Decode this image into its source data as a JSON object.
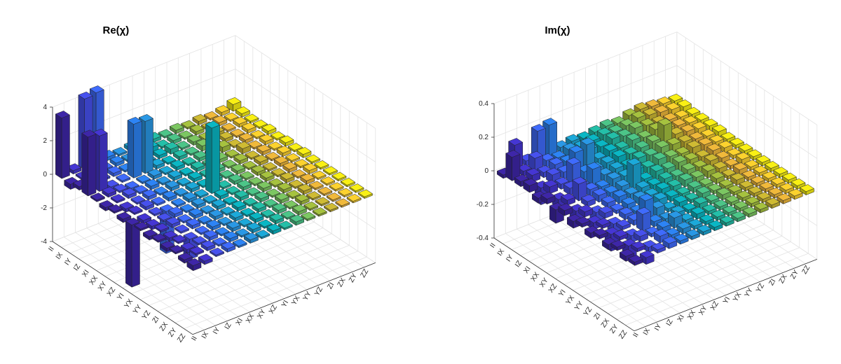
{
  "chart_data": [
    {
      "type": "bar3d",
      "title": "Re(χ)",
      "rows": [
        "II",
        "IX",
        "IY",
        "IZ",
        "XI",
        "XX",
        "XY",
        "XZ",
        "YI",
        "YX",
        "YY",
        "YZ",
        "ZI",
        "ZX",
        "ZY",
        "ZZ"
      ],
      "columns": [
        "II",
        "IX",
        "IY",
        "IZ",
        "XI",
        "XX",
        "XY",
        "XZ",
        "YI",
        "YX",
        "YY",
        "YZ",
        "ZI",
        "ZX",
        "ZY",
        "ZZ"
      ],
      "zlim": [
        -4,
        4
      ],
      "zticks": [
        -4,
        -2,
        0,
        2,
        4
      ],
      "grid": true,
      "colors": [
        "#3e26a8",
        "#4536d3",
        "#4751ee",
        "#3f6bfc",
        "#2d84f5",
        "#2a98e5",
        "#1ca9d9",
        "#0ab7c4",
        "#24bfa8",
        "#4cc588",
        "#7cc762",
        "#a6c23f",
        "#cfbb33",
        "#f0b93b",
        "#fcd22e",
        "#f9f014"
      ],
      "values": [
        [
          3.6,
          0.2,
          4.2,
          4.3,
          0.2,
          0.1,
          0.2,
          0.1,
          0.2,
          0.1,
          0.2,
          0.1,
          0.2,
          0.1,
          0.2,
          0.4
        ],
        [
          -0.3,
          0.1,
          0.2,
          0.1,
          0.2,
          0.1,
          0.2,
          0.3,
          0.1,
          0.2,
          0.1,
          0.2,
          0.1,
          0.2,
          0.1,
          0.2
        ],
        [
          0.2,
          -0.2,
          0.1,
          0.2,
          0.1,
          0.2,
          0.1,
          0.2,
          0.3,
          0.1,
          0.2,
          0.1,
          0.2,
          0.1,
          0.2,
          0.1
        ],
        [
          3.5,
          3.3,
          -0.2,
          0.1,
          3.2,
          3.1,
          0.2,
          0.1,
          0.2,
          0.1,
          0.3,
          0.1,
          0.2,
          0.1,
          0.2,
          0.1
        ],
        [
          0.1,
          0.2,
          0.1,
          -0.2,
          0.1,
          0.2,
          0.1,
          0.2,
          0.1,
          0.2,
          0.1,
          0.3,
          0.1,
          0.2,
          0.1,
          0.2
        ],
        [
          -0.2,
          0.1,
          0.2,
          0.1,
          0.2,
          0.1,
          0.2,
          0.1,
          0.2,
          0.1,
          0.2,
          0.1,
          0.3,
          0.1,
          0.2,
          0.1
        ],
        [
          0.1,
          -0.2,
          0.1,
          0.2,
          0.1,
          0.2,
          0.1,
          0.2,
          0.1,
          0.2,
          0.1,
          0.2,
          0.1,
          0.2,
          0.1,
          0.2
        ],
        [
          -0.2,
          0.1,
          0.2,
          0.1,
          0.2,
          0.1,
          0.2,
          0.1,
          0.2,
          0.1,
          0.2,
          0.1,
          0.2,
          0.1,
          0.2,
          0.1
        ],
        [
          -3.7,
          -0.2,
          0.1,
          -2.5,
          0.1,
          0.2,
          0.1,
          3.9,
          0.1,
          0.2,
          0.1,
          0.2,
          0.1,
          0.2,
          0.1,
          0.2
        ],
        [
          0.1,
          -0.2,
          0.1,
          0.2,
          0.1,
          0.2,
          0.1,
          0.2,
          0.1,
          0.2,
          0.1,
          0.2,
          0.1,
          0.2,
          0.1,
          0.1
        ],
        [
          -0.2,
          0.1,
          0.2,
          0.1,
          0.2,
          0.1,
          0.2,
          0.1,
          0.2,
          0.1,
          0.2,
          0.1,
          0.2,
          0.1,
          0.2,
          0.1
        ],
        [
          0.1,
          -0.2,
          0.1,
          0.2,
          0.1,
          0.2,
          0.1,
          0.2,
          0.1,
          0.2,
          0.1,
          0.2,
          0.1,
          0.2,
          0.1,
          0.1
        ],
        [
          -0.2,
          0.1,
          -1.2,
          0.1,
          0.2,
          0.1,
          0.2,
          0.1,
          0.2,
          0.1,
          0.2,
          0.1,
          0.2,
          0.1,
          0.1,
          0.1
        ],
        [
          0.1,
          -0.2,
          0.1,
          0.2,
          0.1,
          0.2,
          0.1,
          0.2,
          0.1,
          0.2,
          0.1,
          0.2,
          0.1,
          0.1,
          0.1,
          0.1
        ],
        [
          -0.2,
          0.1,
          0.2,
          0.1,
          0.2,
          0.1,
          0.2,
          0.1,
          0.2,
          0.1,
          0.2,
          0.1,
          0.1,
          0.1,
          0.1,
          0.1
        ],
        [
          -0.3,
          -0.2,
          0.1,
          0.2,
          0.1,
          0.2,
          0.1,
          0.2,
          0.1,
          0.2,
          0.1,
          0.1,
          0.1,
          0.1,
          0.1,
          0.1
        ]
      ]
    },
    {
      "type": "bar3d",
      "title": "Im(χ)",
      "rows": [
        "II",
        "IX",
        "IY",
        "IZ",
        "XI",
        "XX",
        "XY",
        "XZ",
        "YI",
        "YX",
        "YY",
        "YZ",
        "ZI",
        "ZX",
        "ZY",
        "ZZ"
      ],
      "columns": [
        "II",
        "IX",
        "IY",
        "IZ",
        "XI",
        "XX",
        "XY",
        "XZ",
        "YI",
        "YX",
        "YY",
        "YZ",
        "ZI",
        "ZX",
        "ZY",
        "ZZ"
      ],
      "zlim": [
        -0.4,
        0.4
      ],
      "zticks": [
        -0.4,
        -0.2,
        0,
        0.2,
        0.4
      ],
      "grid": true,
      "colors": [
        "#3e26a8",
        "#4536d3",
        "#4751ee",
        "#3f6bfc",
        "#2d84f5",
        "#2a98e5",
        "#1ca9d9",
        "#0ab7c4",
        "#24bfa8",
        "#4cc588",
        "#7cc762",
        "#a6c23f",
        "#cfbb33",
        "#f0b93b",
        "#fcd22e",
        "#f9f014"
      ],
      "values": [
        [
          -0.02,
          0.15,
          0.03,
          0.18,
          0.19,
          0.03,
          0.04,
          0.03,
          0.04,
          0.05,
          0.04,
          0.06,
          0.07,
          0.06,
          0.05,
          0.04
        ],
        [
          0.14,
          0.03,
          0.08,
          0.04,
          0.03,
          0.05,
          0.04,
          0.05,
          0.06,
          0.05,
          0.06,
          0.08,
          0.07,
          0.06,
          0.05,
          0.04
        ],
        [
          0.03,
          0.04,
          0.03,
          0.05,
          0.04,
          0.05,
          0.06,
          0.05,
          0.07,
          0.06,
          0.08,
          0.07,
          0.06,
          0.05,
          0.04,
          0.03
        ],
        [
          0.04,
          -0.1,
          0.05,
          0.04,
          0.13,
          0.15,
          0.04,
          0.06,
          0.05,
          0.07,
          0.06,
          0.08,
          0.06,
          0.05,
          0.04,
          0.03
        ],
        [
          -0.03,
          0.04,
          0.03,
          0.12,
          0.05,
          0.04,
          0.05,
          0.06,
          0.05,
          0.06,
          0.07,
          0.14,
          0.06,
          0.05,
          0.04,
          0.03
        ],
        [
          0.03,
          -0.05,
          0.04,
          0.03,
          0.1,
          0.04,
          0.05,
          0.04,
          0.06,
          0.05,
          0.07,
          0.06,
          0.05,
          0.04,
          0.03,
          0.03
        ],
        [
          -0.08,
          0.03,
          0.1,
          0.04,
          0.03,
          0.05,
          0.04,
          0.05,
          0.04,
          0.06,
          0.05,
          0.04,
          0.05,
          0.04,
          0.03,
          0.02
        ],
        [
          0.03,
          -0.06,
          0.03,
          0.04,
          0.03,
          0.04,
          0.14,
          0.03,
          0.05,
          0.04,
          0.05,
          0.04,
          0.03,
          0.04,
          0.03,
          0.02
        ],
        [
          -0.04,
          0.03,
          -0.08,
          0.03,
          0.04,
          0.03,
          0.04,
          0.03,
          0.04,
          0.03,
          0.04,
          0.03,
          0.04,
          0.03,
          0.02,
          0.02
        ],
        [
          0.02,
          -0.04,
          0.03,
          0.02,
          0.03,
          0.04,
          0.03,
          0.04,
          0.03,
          0.04,
          0.03,
          0.04,
          0.03,
          0.02,
          0.03,
          0.02
        ],
        [
          -0.03,
          0.02,
          -0.05,
          0.03,
          0.02,
          0.03,
          0.04,
          0.03,
          0.02,
          0.03,
          0.02,
          0.03,
          0.02,
          0.03,
          0.02,
          0.02
        ],
        [
          0.02,
          -0.1,
          0.02,
          0.03,
          0.12,
          0.05,
          0.02,
          0.03,
          0.02,
          0.03,
          0.02,
          0.02,
          0.03,
          0.02,
          0.02,
          0.02
        ],
        [
          -0.03,
          0.02,
          -0.04,
          0.1,
          0.03,
          0.02,
          0.03,
          0.02,
          0.03,
          0.02,
          0.03,
          0.02,
          0.02,
          0.02,
          0.02,
          0.02
        ],
        [
          0.02,
          -0.08,
          0.03,
          0.02,
          0.03,
          0.06,
          0.02,
          0.03,
          0.02,
          0.02,
          0.02,
          0.02,
          0.02,
          0.02,
          0.02,
          0.02
        ],
        [
          -0.03,
          0.02,
          -0.03,
          0.04,
          0.02,
          0.03,
          0.02,
          0.02,
          0.02,
          0.02,
          0.02,
          0.02,
          0.02,
          0.02,
          0.02,
          0.02
        ],
        [
          -0.02,
          -0.04,
          0.02,
          0.03,
          0.02,
          0.02,
          0.02,
          0.02,
          0.02,
          0.02,
          0.02,
          0.02,
          0.02,
          0.02,
          0.02,
          0.02
        ]
      ]
    }
  ]
}
